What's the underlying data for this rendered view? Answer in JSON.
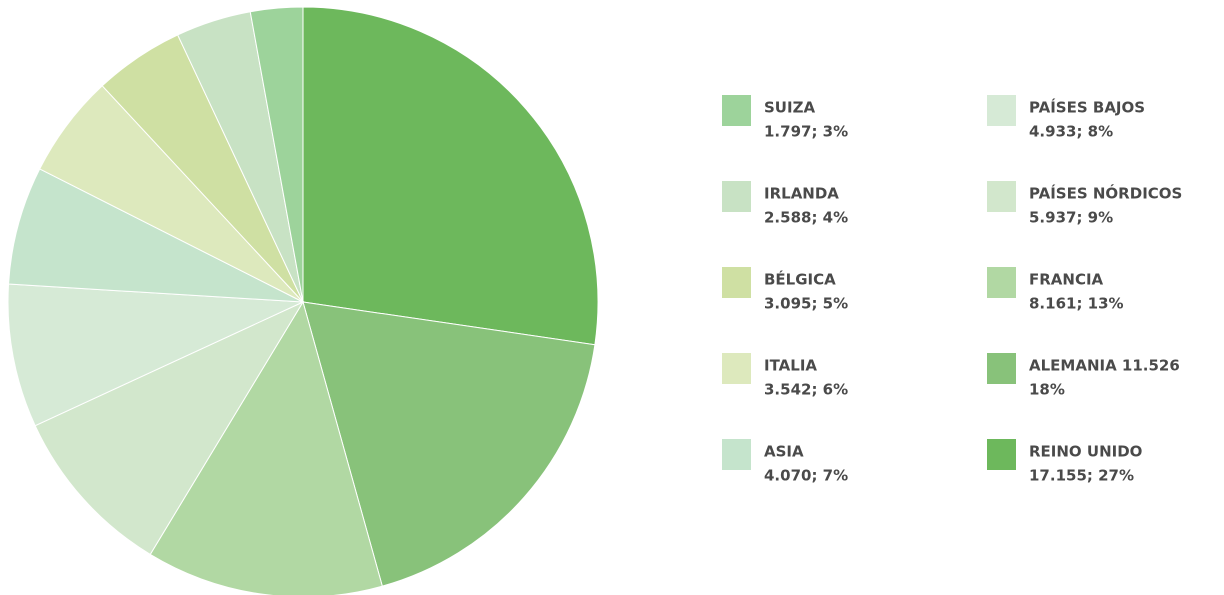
{
  "chart_data": {
    "type": "pie",
    "categories": [
      "SUIZA",
      "IRLANDA",
      "BÉLGICA",
      "ITALIA",
      "ASIA",
      "PAÍSES BAJOS",
      "PAÍSES NÓRDICOS",
      "FRANCIA",
      "ALEMANIA 11.526",
      "REINO UNIDO"
    ],
    "values": [
      1797,
      2588,
      3095,
      3542,
      4070,
      4933,
      5937,
      8161,
      11526,
      17155
    ],
    "value_labels": [
      "1.797; 3%",
      "2.588; 4%",
      "3.095; 5%",
      "3.542; 6%",
      "4.070; 7%",
      "4.933; 8%",
      "5.937; 9%",
      "8.161; 13%",
      "18%",
      "17.155; 27%"
    ],
    "colors": [
      "#9dd39b",
      "#c8e2c4",
      "#cfe0a3",
      "#dde9bd",
      "#c5e4cc",
      "#d6ead6",
      "#d2e7cc",
      "#b1d8a3",
      "#88c27a",
      "#6db85c"
    ]
  }
}
